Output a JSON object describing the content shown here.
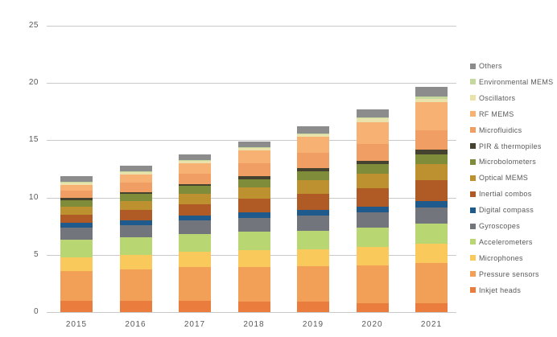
{
  "chart_data": {
    "type": "bar",
    "stacked": true,
    "title": "",
    "xlabel": "",
    "ylabel": "",
    "ylim": [
      0,
      25
    ],
    "yticks": [
      0,
      5,
      10,
      15,
      20,
      25
    ],
    "grid": true,
    "legend_position": "right",
    "categories": [
      "2015",
      "2016",
      "2017",
      "2018",
      "2019",
      "2020",
      "2021"
    ],
    "series": [
      {
        "name": "Inkjet heads",
        "color": "#EA7C3E",
        "values": [
          1.0,
          1.0,
          1.0,
          0.9,
          0.9,
          0.8,
          0.8
        ]
      },
      {
        "name": "Pressure sensors",
        "color": "#F2A057",
        "values": [
          2.6,
          2.7,
          2.9,
          3.0,
          3.1,
          3.3,
          3.5
        ]
      },
      {
        "name": "Microphones",
        "color": "#F9CA5B",
        "values": [
          1.2,
          1.3,
          1.4,
          1.5,
          1.5,
          1.6,
          1.7
        ]
      },
      {
        "name": "Accelerometers",
        "color": "#B8D672",
        "values": [
          1.5,
          1.5,
          1.5,
          1.6,
          1.6,
          1.7,
          1.7
        ]
      },
      {
        "name": "Gyroscopes",
        "color": "#73757D",
        "values": [
          1.1,
          1.1,
          1.2,
          1.2,
          1.3,
          1.3,
          1.4
        ]
      },
      {
        "name": "Digital compass",
        "color": "#1F5A8C",
        "values": [
          0.4,
          0.4,
          0.4,
          0.5,
          0.5,
          0.5,
          0.6
        ]
      },
      {
        "name": "Inertial combos",
        "color": "#B05A26",
        "values": [
          0.7,
          0.9,
          1.0,
          1.2,
          1.4,
          1.6,
          1.8
        ]
      },
      {
        "name": "Optical MEMS",
        "color": "#BD9130",
        "values": [
          0.7,
          0.8,
          0.9,
          1.0,
          1.2,
          1.3,
          1.4
        ]
      },
      {
        "name": "Microbolometers",
        "color": "#7F8C3A",
        "values": [
          0.6,
          0.6,
          0.7,
          0.7,
          0.8,
          0.8,
          0.9
        ]
      },
      {
        "name": "PIR & thermopiles",
        "color": "#45422F",
        "values": [
          0.2,
          0.2,
          0.2,
          0.3,
          0.3,
          0.3,
          0.4
        ]
      },
      {
        "name": "Microfluidics",
        "color": "#F09E63",
        "values": [
          0.6,
          0.8,
          0.9,
          1.1,
          1.3,
          1.5,
          1.7
        ]
      },
      {
        "name": "RF MEMS",
        "color": "#F7B273",
        "values": [
          0.5,
          0.7,
          0.9,
          1.1,
          1.4,
          1.9,
          2.4
        ]
      },
      {
        "name": "Oscillators",
        "color": "#E9E2AB",
        "values": [
          0.2,
          0.2,
          0.2,
          0.2,
          0.2,
          0.3,
          0.3
        ]
      },
      {
        "name": "Environmental MEMS",
        "color": "#C5D89D",
        "values": [
          0.1,
          0.1,
          0.1,
          0.1,
          0.1,
          0.1,
          0.2
        ]
      },
      {
        "name": "Others",
        "color": "#8C8C8C",
        "values": [
          0.5,
          0.5,
          0.5,
          0.5,
          0.6,
          0.7,
          0.9
        ]
      }
    ],
    "totals": [
      11.9,
      12.8,
      13.8,
      14.9,
      16.2,
      17.7,
      19.7
    ],
    "legend_order": "reverse-of-stack"
  },
  "colors": {
    "background": "#ffffff",
    "gridline": "#c9c9c9",
    "text": "#595959"
  }
}
